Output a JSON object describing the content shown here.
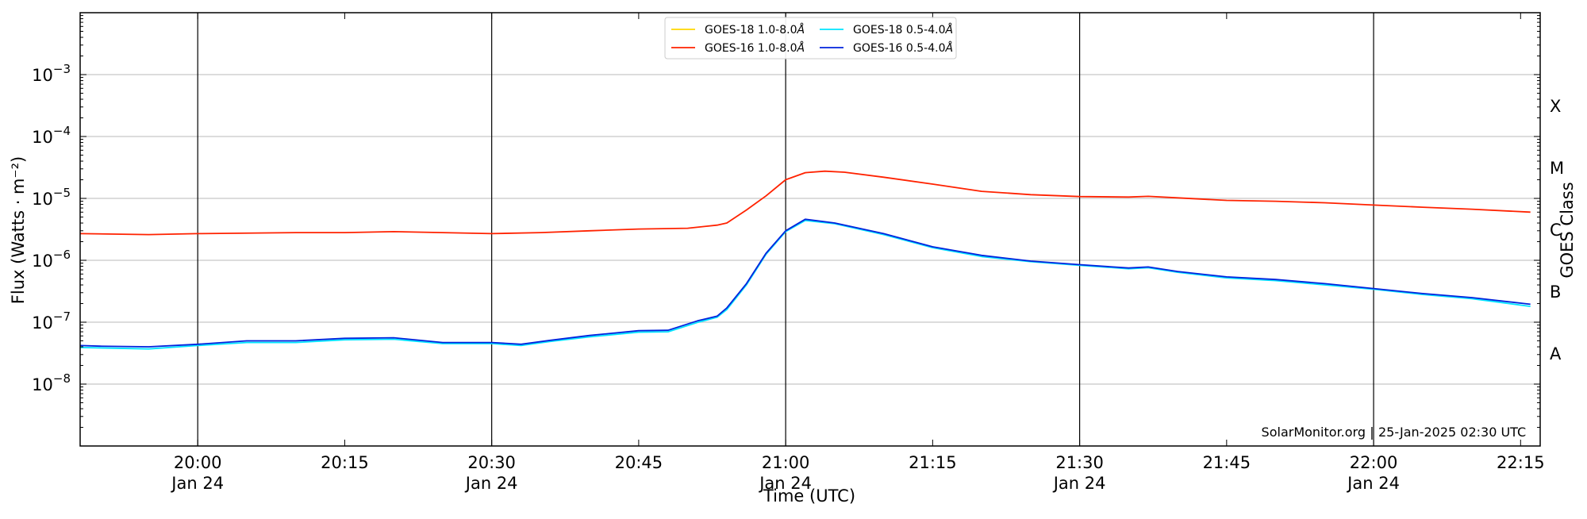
{
  "chart_data": {
    "type": "line",
    "title": "",
    "xlabel": "Time (UTC)",
    "ylabel": "Flux (Watts · m⁻²)",
    "y_scale": "log",
    "ylim": [
      1e-09,
      0.01
    ],
    "xlim": [
      "2025-01-24 19:48",
      "2025-01-24 22:17"
    ],
    "y2label": "GOES Class",
    "y_ticks": [
      {
        "base": "10",
        "exp": "−8",
        "value": 1e-08
      },
      {
        "base": "10",
        "exp": "−7",
        "value": 1e-07
      },
      {
        "base": "10",
        "exp": "−6",
        "value": 1e-06
      },
      {
        "base": "10",
        "exp": "−5",
        "value": 1e-05
      },
      {
        "base": "10",
        "exp": "−4",
        "value": 0.0001
      },
      {
        "base": "10",
        "exp": "−3",
        "value": 0.001
      }
    ],
    "class_labels": [
      {
        "label": "A",
        "value": 3.162e-08
      },
      {
        "label": "B",
        "value": 3.162e-07
      },
      {
        "label": "C",
        "value": 3.162e-06
      },
      {
        "label": "M",
        "value": 3.162e-05
      },
      {
        "label": "X",
        "value": 0.0003162
      }
    ],
    "x_ticks": [
      {
        "time": "2025-01-24 20:00",
        "label": "20:00",
        "date": "Jan 24",
        "vline": true
      },
      {
        "time": "2025-01-24 20:15",
        "label": "20:15",
        "date": "",
        "vline": false
      },
      {
        "time": "2025-01-24 20:30",
        "label": "20:30",
        "date": "Jan 24",
        "vline": true
      },
      {
        "time": "2025-01-24 20:45",
        "label": "20:45",
        "date": "",
        "vline": false
      },
      {
        "time": "2025-01-24 21:00",
        "label": "21:00",
        "date": "Jan 24",
        "vline": true
      },
      {
        "time": "2025-01-24 21:15",
        "label": "21:15",
        "date": "",
        "vline": false
      },
      {
        "time": "2025-01-24 21:30",
        "label": "21:30",
        "date": "Jan 24",
        "vline": true
      },
      {
        "time": "2025-01-24 21:45",
        "label": "21:45",
        "date": "",
        "vline": false
      },
      {
        "time": "2025-01-24 22:00",
        "label": "22:00",
        "date": "Jan 24",
        "vline": true
      },
      {
        "time": "2025-01-24 22:15",
        "label": "22:15",
        "date": "",
        "vline": false
      }
    ],
    "grid": "horizontal at decades",
    "legend_position": "top-center",
    "series": [
      {
        "name": "GOES-18 1.0-8.0",
        "color": "#ffd700",
        "points": []
      },
      {
        "name": "GOES-16 1.0-8.0",
        "color": "#ff2200",
        "points": [
          [
            "2025-01-24 19:48",
            2.7e-06
          ],
          [
            "2025-01-24 19:55",
            2.6e-06
          ],
          [
            "2025-01-24 20:00",
            2.7e-06
          ],
          [
            "2025-01-24 20:10",
            2.8e-06
          ],
          [
            "2025-01-24 20:15",
            2.8e-06
          ],
          [
            "2025-01-24 20:20",
            2.9e-06
          ],
          [
            "2025-01-24 20:25",
            2.8e-06
          ],
          [
            "2025-01-24 20:30",
            2.7e-06
          ],
          [
            "2025-01-24 20:35",
            2.8e-06
          ],
          [
            "2025-01-24 20:40",
            3e-06
          ],
          [
            "2025-01-24 20:45",
            3.2e-06
          ],
          [
            "2025-01-24 20:50",
            3.3e-06
          ],
          [
            "2025-01-24 20:53",
            3.7e-06
          ],
          [
            "2025-01-24 20:54",
            4e-06
          ],
          [
            "2025-01-24 20:56",
            6.5e-06
          ],
          [
            "2025-01-24 20:58",
            1.1e-05
          ],
          [
            "2025-01-24 21:00",
            2e-05
          ],
          [
            "2025-01-24 21:02",
            2.6e-05
          ],
          [
            "2025-01-24 21:04",
            2.75e-05
          ],
          [
            "2025-01-24 21:06",
            2.65e-05
          ],
          [
            "2025-01-24 21:10",
            2.2e-05
          ],
          [
            "2025-01-24 21:15",
            1.7e-05
          ],
          [
            "2025-01-24 21:20",
            1.3e-05
          ],
          [
            "2025-01-24 21:25",
            1.15e-05
          ],
          [
            "2025-01-24 21:30",
            1.07e-05
          ],
          [
            "2025-01-24 21:35",
            1.05e-05
          ],
          [
            "2025-01-24 21:37",
            1.08e-05
          ],
          [
            "2025-01-24 21:40",
            1.02e-05
          ],
          [
            "2025-01-24 21:45",
            9.3e-06
          ],
          [
            "2025-01-24 21:50",
            9e-06
          ],
          [
            "2025-01-24 21:55",
            8.5e-06
          ],
          [
            "2025-01-24 22:00",
            7.8e-06
          ],
          [
            "2025-01-24 22:05",
            7.2e-06
          ],
          [
            "2025-01-24 22:10",
            6.7e-06
          ],
          [
            "2025-01-24 22:16",
            6e-06
          ]
        ]
      },
      {
        "name": "GOES-18 0.5-4.0",
        "color": "#00e5ff",
        "points": [
          [
            "2025-01-24 19:48",
            3.9e-08
          ],
          [
            "2025-01-24 19:55",
            3.7e-08
          ],
          [
            "2025-01-24 20:00",
            4.2e-08
          ],
          [
            "2025-01-24 20:05",
            4.7e-08
          ],
          [
            "2025-01-24 20:10",
            4.7e-08
          ],
          [
            "2025-01-24 20:15",
            5.2e-08
          ],
          [
            "2025-01-24 20:20",
            5.3e-08
          ],
          [
            "2025-01-24 20:25",
            4.5e-08
          ],
          [
            "2025-01-24 20:30",
            4.5e-08
          ],
          [
            "2025-01-24 20:33",
            4.2e-08
          ],
          [
            "2025-01-24 20:36",
            4.9e-08
          ],
          [
            "2025-01-24 20:40",
            5.8e-08
          ],
          [
            "2025-01-24 20:45",
            6.9e-08
          ],
          [
            "2025-01-24 20:48",
            7e-08
          ],
          [
            "2025-01-24 20:51",
            9.9e-08
          ],
          [
            "2025-01-24 20:53",
            1.2e-07
          ],
          [
            "2025-01-24 20:54",
            1.6e-07
          ],
          [
            "2025-01-24 20:56",
            4e-07
          ],
          [
            "2025-01-24 20:58",
            1.25e-06
          ],
          [
            "2025-01-24 21:00",
            2.9e-06
          ],
          [
            "2025-01-24 21:02",
            4.4e-06
          ],
          [
            "2025-01-24 21:05",
            3.9e-06
          ],
          [
            "2025-01-24 21:10",
            2.6e-06
          ],
          [
            "2025-01-24 21:15",
            1.6e-06
          ],
          [
            "2025-01-24 21:20",
            1.15e-06
          ],
          [
            "2025-01-24 21:25",
            9.5e-07
          ],
          [
            "2025-01-24 21:30",
            8.3e-07
          ],
          [
            "2025-01-24 21:35",
            7.3e-07
          ],
          [
            "2025-01-24 21:37",
            7.6e-07
          ],
          [
            "2025-01-24 21:40",
            6.4e-07
          ],
          [
            "2025-01-24 21:45",
            5.2e-07
          ],
          [
            "2025-01-24 21:50",
            4.7e-07
          ],
          [
            "2025-01-24 21:55",
            4e-07
          ],
          [
            "2025-01-24 22:00",
            3.4e-07
          ],
          [
            "2025-01-24 22:05",
            2.8e-07
          ],
          [
            "2025-01-24 22:10",
            2.4e-07
          ],
          [
            "2025-01-24 22:16",
            1.8e-07
          ]
        ]
      },
      {
        "name": "GOES-16 0.5-4.0",
        "color": "#0022dd",
        "points": [
          [
            "2025-01-24 19:48",
            4.2e-08
          ],
          [
            "2025-01-24 19:50",
            4.1e-08
          ],
          [
            "2025-01-24 19:55",
            4e-08
          ],
          [
            "2025-01-24 20:00",
            4.4e-08
          ],
          [
            "2025-01-24 20:05",
            5e-08
          ],
          [
            "2025-01-24 20:10",
            5e-08
          ],
          [
            "2025-01-24 20:15",
            5.5e-08
          ],
          [
            "2025-01-24 20:20",
            5.6e-08
          ],
          [
            "2025-01-24 20:25",
            4.7e-08
          ],
          [
            "2025-01-24 20:30",
            4.7e-08
          ],
          [
            "2025-01-24 20:33",
            4.4e-08
          ],
          [
            "2025-01-24 20:36",
            5.1e-08
          ],
          [
            "2025-01-24 20:40",
            6.1e-08
          ],
          [
            "2025-01-24 20:45",
            7.3e-08
          ],
          [
            "2025-01-24 20:48",
            7.4e-08
          ],
          [
            "2025-01-24 20:51",
            1.05e-07
          ],
          [
            "2025-01-24 20:53",
            1.25e-07
          ],
          [
            "2025-01-24 20:54",
            1.7e-07
          ],
          [
            "2025-01-24 20:56",
            4.2e-07
          ],
          [
            "2025-01-24 20:58",
            1.3e-06
          ],
          [
            "2025-01-24 21:00",
            3e-06
          ],
          [
            "2025-01-24 21:02",
            4.6e-06
          ],
          [
            "2025-01-24 21:05",
            4e-06
          ],
          [
            "2025-01-24 21:10",
            2.7e-06
          ],
          [
            "2025-01-24 21:15",
            1.65e-06
          ],
          [
            "2025-01-24 21:20",
            1.2e-06
          ],
          [
            "2025-01-24 21:25",
            9.7e-07
          ],
          [
            "2025-01-24 21:30",
            8.5e-07
          ],
          [
            "2025-01-24 21:35",
            7.5e-07
          ],
          [
            "2025-01-24 21:37",
            7.8e-07
          ],
          [
            "2025-01-24 21:40",
            6.6e-07
          ],
          [
            "2025-01-24 21:45",
            5.4e-07
          ],
          [
            "2025-01-24 21:50",
            4.9e-07
          ],
          [
            "2025-01-24 21:55",
            4.2e-07
          ],
          [
            "2025-01-24 22:00",
            3.5e-07
          ],
          [
            "2025-01-24 22:05",
            2.9e-07
          ],
          [
            "2025-01-24 22:10",
            2.5e-07
          ],
          [
            "2025-01-24 22:16",
            1.95e-07
          ]
        ]
      }
    ],
    "legend": [
      {
        "label": "GOES-18 1.0-8.0",
        "unit": "Å",
        "color": "#ffd700"
      },
      {
        "label": "GOES-18 0.5-4.0",
        "unit": "Å",
        "color": "#00e5ff"
      },
      {
        "label": "GOES-16 1.0-8.0",
        "unit": "Å",
        "color": "#ff2200"
      },
      {
        "label": "GOES-16 0.5-4.0",
        "unit": "Å",
        "color": "#0022dd"
      }
    ],
    "credit": {
      "site": "SolarMonitor.org",
      "timestamp": "25-Jan-2025 02:30 UTC"
    }
  }
}
